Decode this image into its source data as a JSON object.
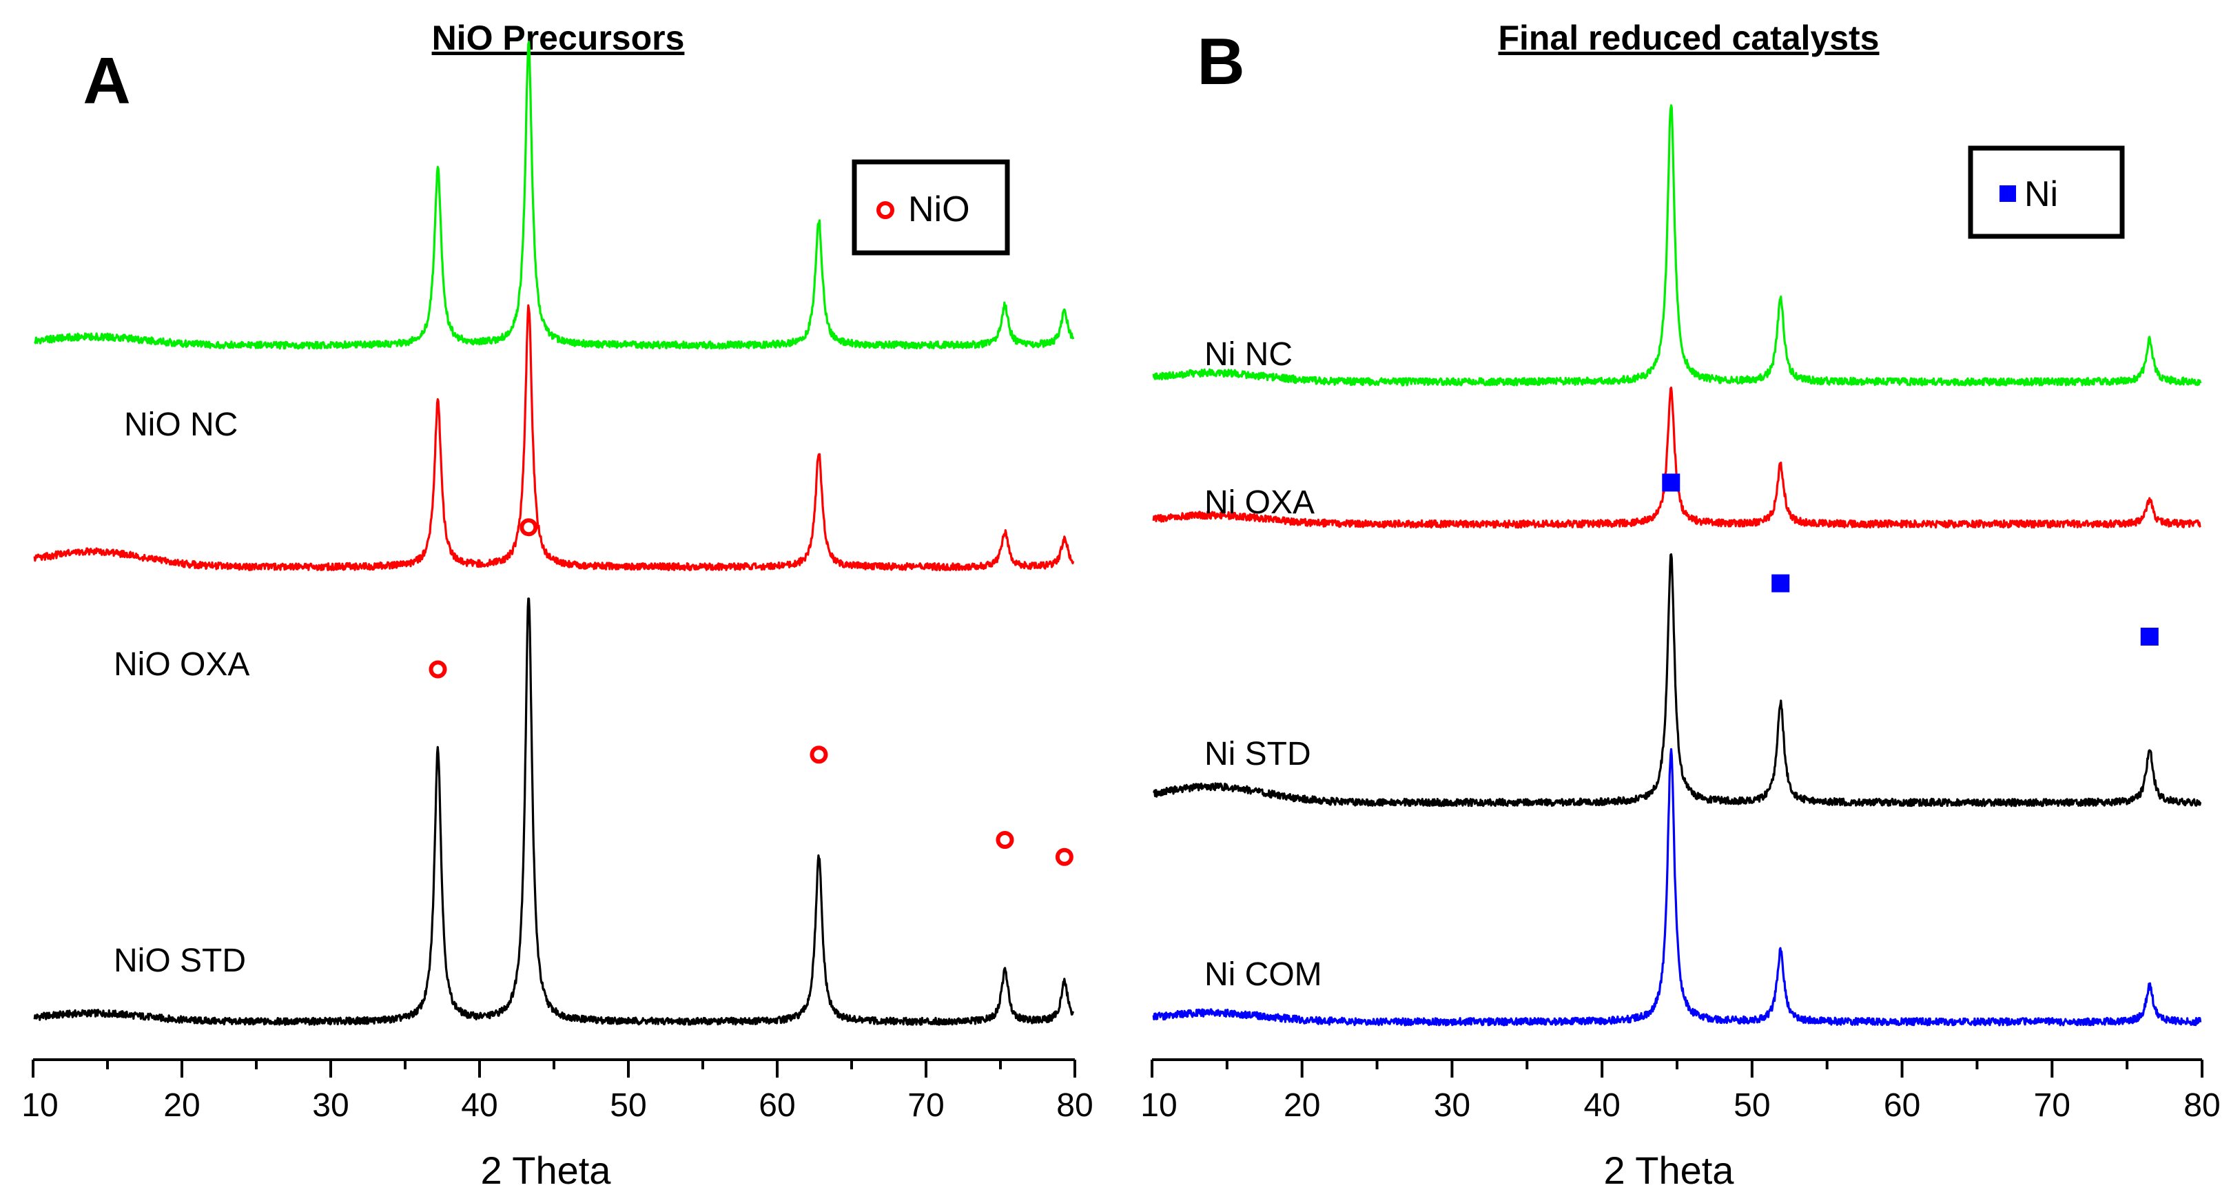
{
  "chart_data": [
    {
      "type": "line",
      "panel_letter": "A",
      "title": "NiO Precursors",
      "xlabel": "2 Theta",
      "ylabel": "",
      "xlim": [
        10,
        80
      ],
      "xticks": [
        10,
        20,
        30,
        40,
        50,
        60,
        70,
        80
      ],
      "y_ticks_shown": false,
      "legend": {
        "position": "top-right",
        "marker": "open-circle",
        "color": "#ff0000",
        "label": "NiO"
      },
      "peak_markers": [
        {
          "x": 37.2,
          "level": 0.62
        },
        {
          "x": 43.3,
          "level": 0.87
        },
        {
          "x": 62.8,
          "level": 0.47
        },
        {
          "x": 75.3,
          "level": 0.32
        },
        {
          "x": 79.3,
          "level": 0.29
        }
      ],
      "series": [
        {
          "name": "NiO STD",
          "color": "#000000",
          "baseline": 0.0,
          "peaks": [
            [
              37.2,
              0.48
            ],
            [
              43.3,
              0.75
            ],
            [
              62.8,
              0.29
            ],
            [
              75.3,
              0.09
            ],
            [
              79.3,
              0.07
            ]
          ]
        },
        {
          "name": "NiO OXA",
          "color": "#ff0000",
          "baseline": 0.8,
          "peaks": [
            [
              37.2,
              0.29
            ],
            [
              43.3,
              0.46
            ],
            [
              62.8,
              0.2
            ],
            [
              75.3,
              0.06
            ],
            [
              79.3,
              0.05
            ]
          ]
        },
        {
          "name": "NiO NC",
          "color": "#00ee00",
          "baseline": 1.19,
          "peaks": [
            [
              37.2,
              0.31
            ],
            [
              43.3,
              0.53
            ],
            [
              62.8,
              0.22
            ],
            [
              75.3,
              0.07
            ],
            [
              79.3,
              0.06
            ]
          ]
        }
      ]
    },
    {
      "type": "line",
      "panel_letter": "B",
      "title": "Final reduced catalysts",
      "xlabel": "2 Theta",
      "ylabel": "",
      "xlim": [
        10,
        80
      ],
      "xticks": [
        10,
        20,
        30,
        40,
        50,
        60,
        70,
        80
      ],
      "y_ticks_shown": false,
      "legend": {
        "position": "top-right",
        "marker": "filled-square",
        "color": "#0000ff",
        "label": "Ni"
      },
      "peak_markers": [
        {
          "x": 44.6,
          "level": 0.91
        },
        {
          "x": 51.9,
          "level": 0.74
        },
        {
          "x": 76.5,
          "level": 0.65
        }
      ],
      "series": [
        {
          "name": "Ni COM",
          "color": "#0000ff",
          "baseline": 0.0,
          "peaks": [
            [
              44.6,
              0.46
            ],
            [
              51.9,
              0.12
            ],
            [
              76.5,
              0.06
            ]
          ]
        },
        {
          "name": "Ni STD",
          "color": "#000000",
          "baseline": 0.37,
          "peaks": [
            [
              44.6,
              0.42
            ],
            [
              51.9,
              0.17
            ],
            [
              76.5,
              0.09
            ]
          ]
        },
        {
          "name": "Ni OXA",
          "color": "#ff0000",
          "baseline": 0.84,
          "peaks": [
            [
              44.6,
              0.23
            ],
            [
              51.9,
              0.1
            ],
            [
              76.5,
              0.04
            ]
          ]
        },
        {
          "name": "Ni NC",
          "color": "#00ee00",
          "baseline": 1.08,
          "peaks": [
            [
              44.6,
              0.47
            ],
            [
              51.9,
              0.14
            ],
            [
              76.5,
              0.07
            ]
          ]
        }
      ]
    }
  ]
}
